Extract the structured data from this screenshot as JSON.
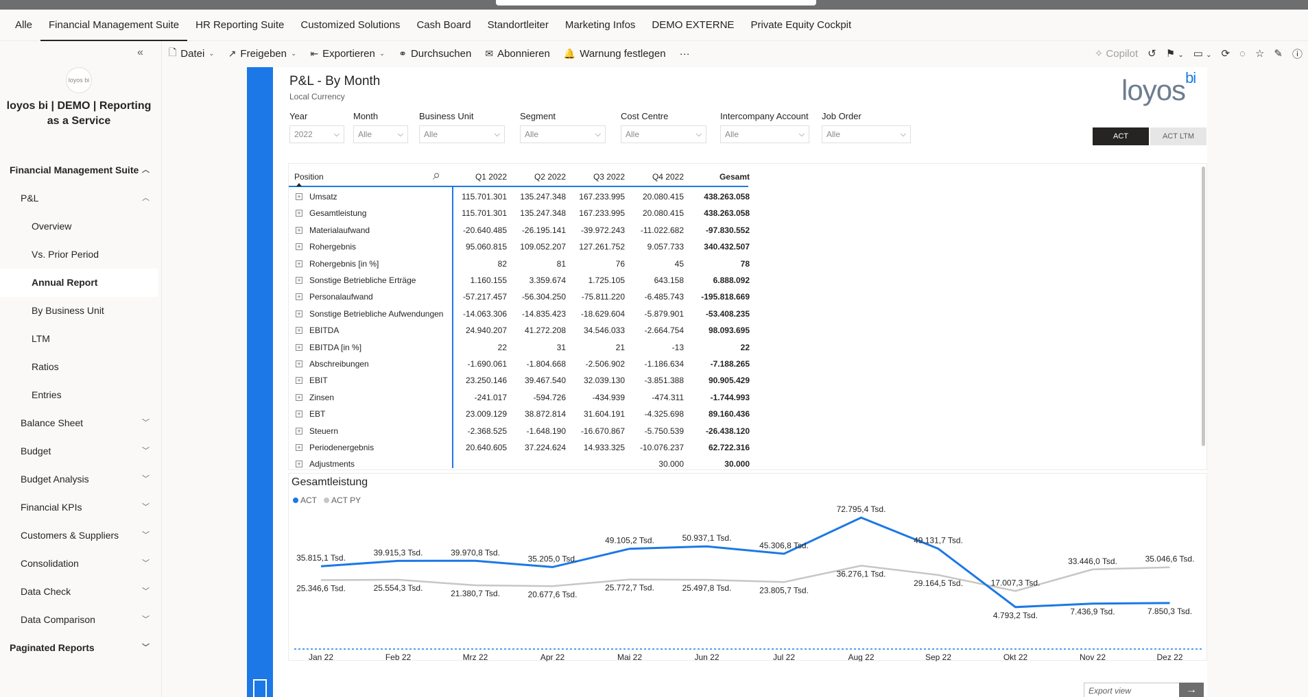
{
  "nav_tabs": [
    "Alle",
    "Financial Management Suite",
    "HR Reporting Suite",
    "Customized Solutions",
    "Cash Board",
    "Standortleiter",
    "Marketing Infos",
    "DEMO EXTERNE",
    "Private Equity Cockpit"
  ],
  "toolbar": {
    "datei": "Datei",
    "freigeben": "Freigeben",
    "exportieren": "Exportieren",
    "durchsuchen": "Durchsuchen",
    "abonnieren": "Abonnieren",
    "warnung": "Warnung festlegen",
    "more": "···",
    "copilot": "Copilot"
  },
  "sidebar": {
    "logo_text": "loyos bi",
    "workspace": "loyos bi | DEMO | Reporting as a Service",
    "items": [
      {
        "label": "Financial Management Suite",
        "level": 0,
        "chevron": "up"
      },
      {
        "label": "P&L",
        "level": 1,
        "chevron": "up"
      },
      {
        "label": "Overview",
        "level": 2,
        "chevron": ""
      },
      {
        "label": "Vs. Prior Period",
        "level": 2,
        "chevron": ""
      },
      {
        "label": "Annual Report",
        "level": 2,
        "chevron": "",
        "selected": true
      },
      {
        "label": "By Business Unit",
        "level": 2,
        "chevron": ""
      },
      {
        "label": "LTM",
        "level": 2,
        "chevron": ""
      },
      {
        "label": "Ratios",
        "level": 2,
        "chevron": ""
      },
      {
        "label": "Entries",
        "level": 2,
        "chevron": ""
      },
      {
        "label": "Balance Sheet",
        "level": 1,
        "chevron": "down"
      },
      {
        "label": "Budget",
        "level": 1,
        "chevron": "down"
      },
      {
        "label": "Budget Analysis",
        "level": 1,
        "chevron": "down"
      },
      {
        "label": "Financial KPIs",
        "level": 1,
        "chevron": "down"
      },
      {
        "label": "Customers & Suppliers",
        "level": 1,
        "chevron": "down"
      },
      {
        "label": "Consolidation",
        "level": 1,
        "chevron": "down"
      },
      {
        "label": "Data Check",
        "level": 1,
        "chevron": "down"
      },
      {
        "label": "Data Comparison",
        "level": 1,
        "chevron": "down"
      },
      {
        "label": "Paginated Reports",
        "level": 0,
        "chevron": "down"
      }
    ]
  },
  "report": {
    "title": "P&L - By Month",
    "subtitle": "Local Currency",
    "brand": "loyos",
    "brand_sup": "bi",
    "slicers": [
      {
        "label": "Year",
        "value": "2022"
      },
      {
        "label": "Month",
        "value": "Alle"
      },
      {
        "label": "Business Unit",
        "value": "Alle"
      },
      {
        "label": "Segment",
        "value": "Alle"
      },
      {
        "label": "Cost Centre",
        "value": "Alle"
      },
      {
        "label": "Intercompany Account",
        "value": "Alle"
      },
      {
        "label": "Job Order",
        "value": "Alle"
      }
    ],
    "toggle_act": "ACT",
    "toggle_ltm": "ACT LTM",
    "matrix": {
      "headers": [
        "Position",
        "Q1 2022",
        "Q2 2022",
        "Q3 2022",
        "Q4 2022",
        "Gesamt"
      ],
      "rows": [
        [
          "Umsatz",
          "115.701.301",
          "135.247.348",
          "167.233.995",
          "20.080.415",
          "438.263.058"
        ],
        [
          "Gesamtleistung",
          "115.701.301",
          "135.247.348",
          "167.233.995",
          "20.080.415",
          "438.263.058"
        ],
        [
          "Materialaufwand",
          "-20.640.485",
          "-26.195.141",
          "-39.972.243",
          "-11.022.682",
          "-97.830.552"
        ],
        [
          "Rohergebnis",
          "95.060.815",
          "109.052.207",
          "127.261.752",
          "9.057.733",
          "340.432.507"
        ],
        [
          "Rohergebnis [in %]",
          "82",
          "81",
          "76",
          "45",
          "78"
        ],
        [
          "Sonstige Betriebliche Erträge",
          "1.160.155",
          "3.359.674",
          "1.725.105",
          "643.158",
          "6.888.092"
        ],
        [
          "Personalaufwand",
          "-57.217.457",
          "-56.304.250",
          "-75.811.220",
          "-6.485.743",
          "-195.818.669"
        ],
        [
          "Sonstige Betriebliche Aufwendungen",
          "-14.063.306",
          "-14.835.423",
          "-18.629.604",
          "-5.879.901",
          "-53.408.235"
        ],
        [
          "EBITDA",
          "24.940.207",
          "41.272.208",
          "34.546.033",
          "-2.664.754",
          "98.093.695"
        ],
        [
          "EBITDA [in %]",
          "22",
          "31",
          "21",
          "-13",
          "22"
        ],
        [
          "Abschreibungen",
          "-1.690.061",
          "-1.804.668",
          "-2.506.902",
          "-1.186.634",
          "-7.188.265"
        ],
        [
          "EBIT",
          "23.250.146",
          "39.467.540",
          "32.039.130",
          "-3.851.388",
          "90.905.429"
        ],
        [
          "Zinsen",
          "-241.017",
          "-594.726",
          "-434.939",
          "-474.311",
          "-1.744.993"
        ],
        [
          "EBT",
          "23.009.129",
          "38.872.814",
          "31.604.191",
          "-4.325.698",
          "89.160.436"
        ],
        [
          "Steuern",
          "-2.368.525",
          "-1.648.190",
          "-16.670.867",
          "-5.750.539",
          "-26.438.120"
        ],
        [
          "Periodenergebnis",
          "20.640.605",
          "37.224.624",
          "14.933.325",
          "-10.076.237",
          "62.722.316"
        ],
        [
          "Adjustments",
          "",
          "",
          "",
          "30.000",
          "30.000"
        ]
      ]
    },
    "export_placeholder": "Export view",
    "export_go": "→"
  },
  "chart_data": {
    "type": "line",
    "title": "Gesamtleistung",
    "categories": [
      "Jan 22",
      "Feb 22",
      "Mrz 22",
      "Apr 22",
      "Mai 22",
      "Jun 22",
      "Jul 22",
      "Aug 22",
      "Sep 22",
      "Okt 22",
      "Nov 22",
      "Dez 22"
    ],
    "series": [
      {
        "name": "ACT",
        "color": "#1b78e6",
        "values": [
          35815.1,
          39915.3,
          39970.8,
          35205.0,
          49105.2,
          50937.1,
          45306.8,
          72795.4,
          49131.7,
          4793.2,
          7436.9,
          7850.3
        ],
        "labels": [
          "35.815,1 Tsd.",
          "39.915,3 Tsd.",
          "39.970,8 Tsd.",
          "35.205,0 Tsd.",
          "49.105,2 Tsd.",
          "50.937,1 Tsd.",
          "45.306,8 Tsd.",
          "72.795,4 Tsd.",
          "49.131,7 Tsd.",
          "4.793,2 Tsd.",
          "7.436,9 Tsd.",
          "7.850,3 Tsd."
        ]
      },
      {
        "name": "ACT PY",
        "color": "#c8c6c4",
        "values": [
          25346.6,
          25554.3,
          21380.7,
          20677.6,
          25772.7,
          25497.8,
          23805.7,
          36276.1,
          29164.5,
          17007.3,
          33446.0,
          35046.6
        ],
        "labels": [
          "25.346,6 Tsd.",
          "25.554,3 Tsd.",
          "21.380,7 Tsd.",
          "20.677,6 Tsd.",
          "25.772,7 Tsd.",
          "25.497,8 Tsd.",
          "23.805,7 Tsd.",
          "36.276,1 Tsd.",
          "29.164,5 Tsd.",
          "17.007,3 Tsd.",
          "33.446,0 Tsd.",
          "35.046,6 Tsd."
        ]
      }
    ],
    "legend": "top-left",
    "grid": false
  }
}
